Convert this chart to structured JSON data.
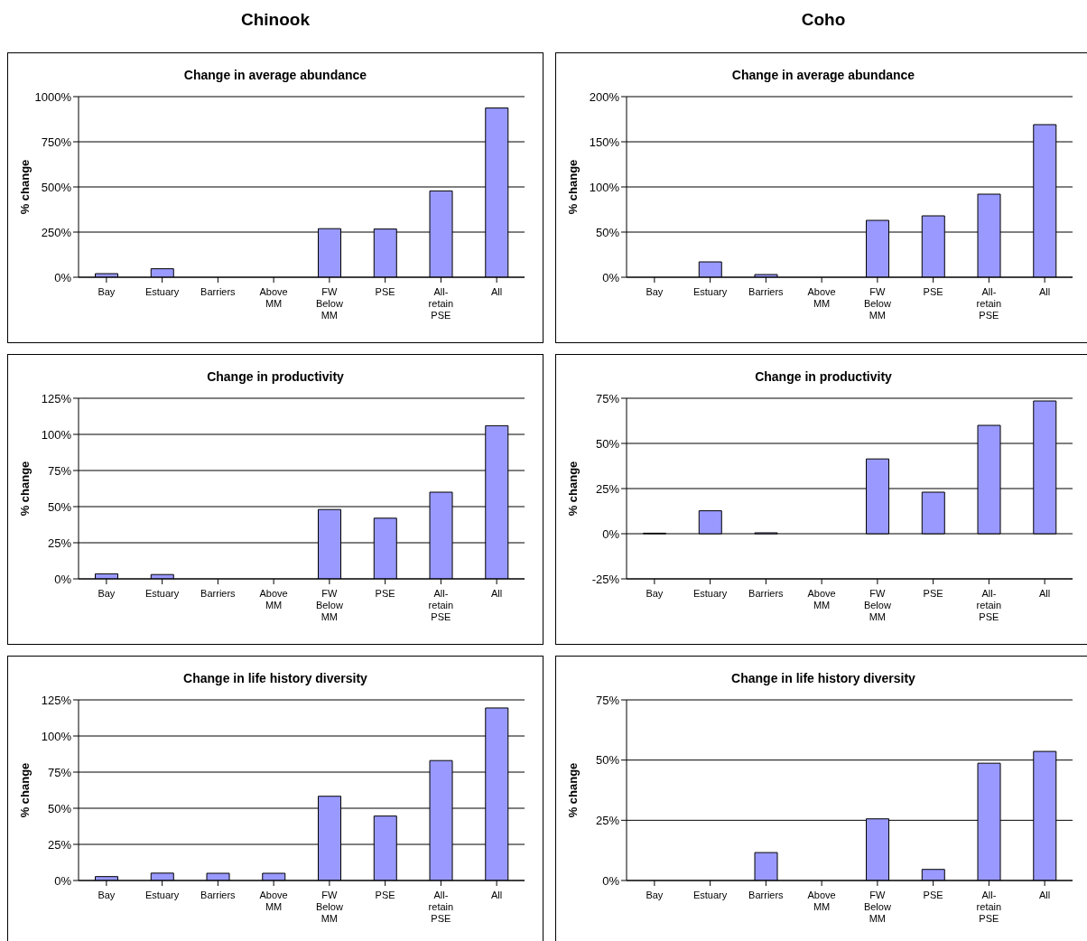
{
  "chart_data": [
    {
      "type": "bar",
      "annotations": [
        "Chinook"
      ],
      "title": "Change in average abundance",
      "ylabel": "% change",
      "categories": [
        "Bay",
        "Estuary",
        "Barriers",
        "Above MM",
        "FW Below MM",
        "PSE",
        "All-retain PSE",
        "All"
      ],
      "values": [
        20,
        47,
        0,
        0,
        269,
        267,
        478,
        937
      ],
      "color": "#9999ff",
      "ylim": [
        0,
        1000
      ],
      "yticks": [
        {
          "value": 0,
          "label": "0%"
        },
        {
          "value": 250,
          "label": "250%"
        },
        {
          "value": 500,
          "label": "500%"
        },
        {
          "value": 750,
          "label": "750%"
        },
        {
          "value": 1000,
          "label": "1000%"
        }
      ],
      "grid": "y"
    },
    {
      "type": "bar",
      "annotations": [
        "Coho"
      ],
      "title": "Change in average abundance",
      "ylabel": "% change",
      "categories": [
        "Bay",
        "Estuary",
        "Barriers",
        "Above MM",
        "FW Below MM",
        "PSE",
        "All-retain PSE",
        "All"
      ],
      "values": [
        0,
        17,
        3,
        0,
        63,
        68,
        92,
        169
      ],
      "color": "#9999ff",
      "ylim": [
        0,
        200
      ],
      "yticks": [
        {
          "value": 0,
          "label": "0%"
        },
        {
          "value": 50,
          "label": "50%"
        },
        {
          "value": 100,
          "label": "100%"
        },
        {
          "value": 150,
          "label": "150%"
        },
        {
          "value": 200,
          "label": "200%"
        }
      ],
      "grid": "y"
    },
    {
      "type": "bar",
      "title": "Change in productivity",
      "ylabel": "% change",
      "categories": [
        "Bay",
        "Estuary",
        "Barriers",
        "Above MM",
        "FW Below MM",
        "PSE",
        "All-retain PSE",
        "All"
      ],
      "values": [
        3.5,
        3,
        0,
        0,
        48,
        42,
        60,
        106
      ],
      "color": "#9999ff",
      "ylim": [
        0,
        125
      ],
      "yticks": [
        {
          "value": 0,
          "label": "0%"
        },
        {
          "value": 25,
          "label": "25%"
        },
        {
          "value": 50,
          "label": "50%"
        },
        {
          "value": 75,
          "label": "75%"
        },
        {
          "value": 100,
          "label": "100%"
        },
        {
          "value": 125,
          "label": "125%"
        }
      ],
      "grid": "y"
    },
    {
      "type": "bar",
      "title": "Change in productivity",
      "ylabel": "% change",
      "categories": [
        "Bay",
        "Estuary",
        "Barriers",
        "Above MM",
        "FW Below MM",
        "PSE",
        "All-retain PSE",
        "All"
      ],
      "values": [
        0.3,
        12.7,
        0.5,
        0,
        41.4,
        23,
        60,
        73.5
      ],
      "color": "#9999ff",
      "ylim": [
        -25,
        75
      ],
      "yticks": [
        {
          "value": -25,
          "label": "-25%"
        },
        {
          "value": 0,
          "label": "0%"
        },
        {
          "value": 25,
          "label": "25%"
        },
        {
          "value": 50,
          "label": "50%"
        },
        {
          "value": 75,
          "label": "75%"
        }
      ],
      "grid": "y"
    },
    {
      "type": "bar",
      "title": "Change in life history diversity",
      "ylabel": "% change",
      "categories": [
        "Bay",
        "Estuary",
        "Barriers",
        "Above MM",
        "FW Below MM",
        "PSE",
        "All-retain PSE",
        "All"
      ],
      "values": [
        2.7,
        5.1,
        5,
        5,
        58.3,
        44.6,
        83,
        119.4
      ],
      "color": "#9999ff",
      "ylim": [
        0,
        125
      ],
      "yticks": [
        {
          "value": 0,
          "label": "0%"
        },
        {
          "value": 25,
          "label": "25%"
        },
        {
          "value": 50,
          "label": "50%"
        },
        {
          "value": 75,
          "label": "75%"
        },
        {
          "value": 100,
          "label": "100%"
        },
        {
          "value": 125,
          "label": "125%"
        }
      ],
      "grid": "y"
    },
    {
      "type": "bar",
      "title": "Change in life history diversity",
      "ylabel": "% change",
      "categories": [
        "Bay",
        "Estuary",
        "Barriers",
        "Above MM",
        "FW Below MM",
        "PSE",
        "All-retain PSE",
        "All"
      ],
      "values": [
        0,
        0,
        11.6,
        0,
        25.6,
        4.6,
        48.7,
        53.6
      ],
      "color": "#9999ff",
      "ylim": [
        0,
        75
      ],
      "yticks": [
        {
          "value": 0,
          "label": "0%"
        },
        {
          "value": 25,
          "label": "25%"
        },
        {
          "value": 50,
          "label": "50%"
        },
        {
          "value": 75,
          "label": "75%"
        }
      ],
      "grid": "y"
    }
  ]
}
